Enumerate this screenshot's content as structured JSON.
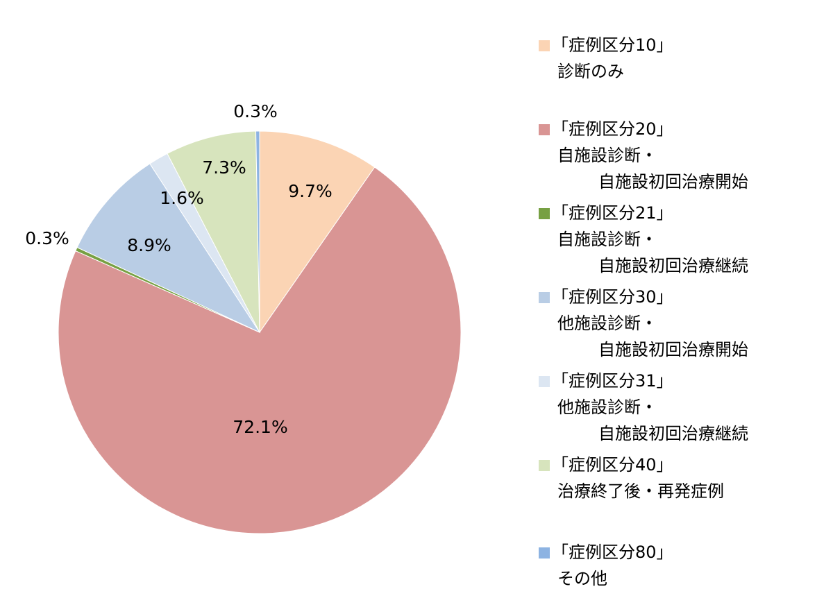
{
  "chart_data": {
    "type": "pie",
    "categories": [
      [
        "「症例区分10」",
        "診断のみ"
      ],
      [
        "「症例区分20」",
        "自施設診断・",
        "自施設初回治療開始"
      ],
      [
        "「症例区分21」",
        "自施設診断・",
        "自施設初回治療継続"
      ],
      [
        "「症例区分30」",
        "他施設診断・",
        "自施設初回治療開始"
      ],
      [
        "「症例区分31」",
        "他施設診断・",
        "自施設初回治療継続"
      ],
      [
        "「症例区分40」",
        "治療終了後・再発症例"
      ],
      [
        "「症例区分80」",
        "その他"
      ]
    ],
    "values": [
      9.7,
      72.1,
      0.3,
      8.9,
      1.6,
      7.3,
      0.3
    ],
    "value_labels": [
      "9.7%",
      "72.1%",
      "0.3%",
      "8.9%",
      "1.6%",
      "7.3%",
      "0.3%"
    ],
    "colors": [
      "#fbd4b4",
      "#d99594",
      "#77a043",
      "#b9cde5",
      "#dce6f2",
      "#d7e4bd",
      "#8db3e2"
    ],
    "legend": "right"
  }
}
